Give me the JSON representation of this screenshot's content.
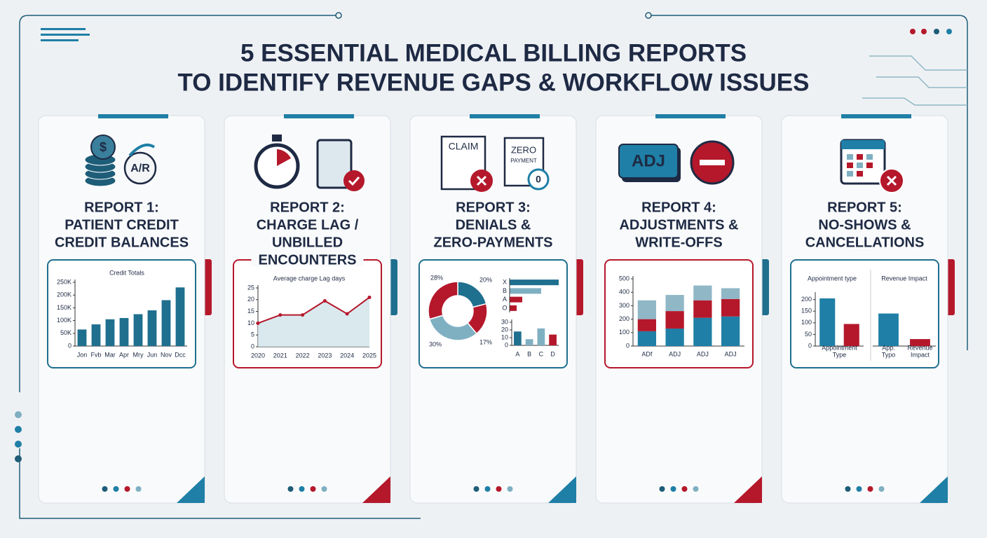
{
  "header": {
    "title_lines": [
      "5 ESSENTIAL MEDICAL BILLING REPORTS",
      "TO IDENTIFY REVENUE GAPS & WORKFLOW ISSUES"
    ]
  },
  "cards": [
    {
      "title_lines": [
        "REPORT 1:",
        "PATIENT CREDIT",
        "CREDIT BALANCES"
      ],
      "icon_texts": [
        "$",
        "A/R"
      ],
      "charts": [
        {
          "type": "bar",
          "title": "Credit Totals",
          "categories": [
            "Jon",
            "Fvb",
            "Mar",
            "Apr",
            "Mry",
            "Jun",
            "Nov",
            "Dcc"
          ],
          "values": [
            65000,
            85000,
            105000,
            110000,
            125000,
            140000,
            180000,
            230000
          ],
          "color": "#1f6f8f",
          "ylim": [
            0,
            250000
          ],
          "yticks": [
            0,
            {
              "value": 50000,
              "label": "50K"
            },
            {
              "value": 100000,
              "label": "100K"
            },
            {
              "value": 150000,
              "label": "150K"
            },
            {
              "value": 200000,
              "label": "200K"
            },
            {
              "value": 250000,
              "label": "250K"
            }
          ]
        }
      ]
    },
    {
      "title_lines": [
        "REPORT 2:",
        "CHARGE LAG /",
        "UNBILLED",
        "ENCOUNTERS"
      ],
      "icon_texts": [],
      "charts": [
        {
          "type": "line",
          "title": "Average charge Lag days",
          "categories": [
            "2020",
            "2021",
            "2022",
            "2023",
            "2024",
            "2025"
          ],
          "values": [
            10,
            13.5,
            13.5,
            19.5,
            14,
            21
          ],
          "color": "#b5182b",
          "fill": "#cfe3ea",
          "ylim": [
            0,
            25
          ],
          "yticks": [
            0,
            5,
            10,
            15,
            20,
            25
          ]
        }
      ]
    },
    {
      "title_lines": [
        "REPORT 3:",
        "DENIALS &",
        "ZERO-PAYMENTS"
      ],
      "icon_texts": [
        "CLAIM",
        "ZERO",
        "PAYMENT",
        "0"
      ],
      "charts": [
        {
          "type": "pie",
          "values": [
            20,
            17,
            30,
            28
          ],
          "value_labels": [
            "20%",
            "17%",
            "30%",
            "28%"
          ],
          "colors": [
            "#1f6f8f",
            "#b5182b",
            "#7fb0c2",
            "#b5182b"
          ]
        },
        {
          "type": "hbar",
          "categories": [
            "X",
            "B",
            "A",
            "O"
          ],
          "values": [
            70,
            45,
            18,
            10
          ],
          "colors": [
            "#1f6f8f",
            "#7fb0c2",
            "#b5182b",
            "#b5182b"
          ],
          "xlim": [
            0,
            70
          ]
        },
        {
          "type": "bar",
          "categories": [
            "A",
            "B",
            "C",
            "D"
          ],
          "values": [
            18,
            8,
            22,
            14
          ],
          "colors": [
            "#1f6f8f",
            "#7fb0c2",
            "#7fb0c2",
            "#b5182b"
          ],
          "ylim": [
            0,
            30
          ],
          "yticks": [
            0,
            10,
            20,
            30
          ]
        }
      ]
    },
    {
      "title_lines": [
        "REPORT 4:",
        "ADJUSTMENTS &",
        "WRITE-OFFS"
      ],
      "icon_texts": [
        "ADJ"
      ],
      "charts": [
        {
          "type": "stacked",
          "categories": [
            "ADf",
            "ADJ",
            "ADJ",
            "ADJ"
          ],
          "series": [
            {
              "color": "#1f7fa6",
              "values": [
                110,
                130,
                210,
                220
              ]
            },
            {
              "color": "#b5182b",
              "values": [
                90,
                130,
                130,
                130
              ]
            },
            {
              "color": "#8fb7c6",
              "values": [
                140,
                120,
                110,
                80
              ]
            }
          ],
          "ylim": [
            0,
            500
          ],
          "yticks": [
            0,
            100,
            200,
            300,
            400,
            500
          ]
        }
      ]
    },
    {
      "title_lines": [
        "REPORT 5:",
        "NO-SHOWS &",
        "CANCELLATIONS"
      ],
      "icon_texts": [],
      "charts": [
        {
          "type": "bar",
          "title": "Appointment type",
          "x_label_lines": [
            "Appointment",
            "Type"
          ],
          "values": [
            205,
            95
          ],
          "colors": [
            "#1f7fa6",
            "#b5182b"
          ],
          "ylim": [
            0,
            220
          ],
          "yticks": [
            0,
            50,
            100,
            150,
            200
          ]
        },
        {
          "type": "bar",
          "title": "Revenue Impact",
          "categories": [
            [
              "App.",
              "Typo"
            ],
            [
              "Revenue",
              "Impact"
            ]
          ],
          "values": [
            140,
            30
          ],
          "colors": [
            "#1f7fa6",
            "#b5182b"
          ],
          "ylim": [
            0,
            220
          ]
        }
      ]
    }
  ]
}
